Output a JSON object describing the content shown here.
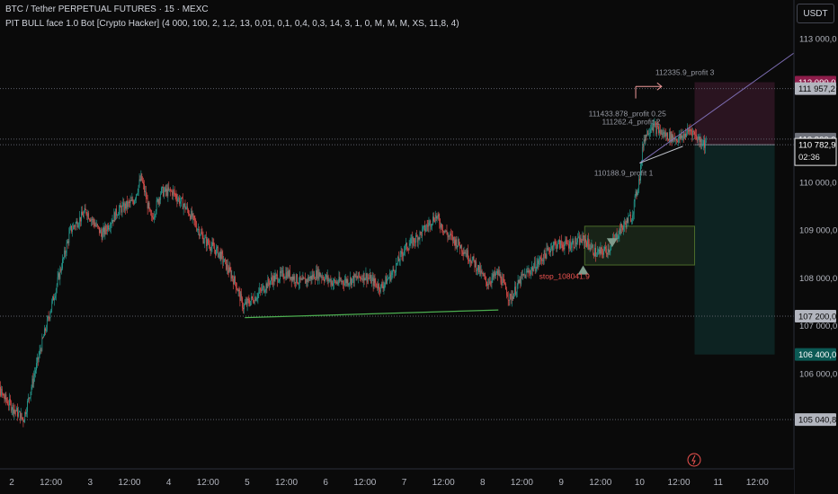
{
  "header": {
    "symbol": "BTC / Tether PERPETUAL FUTURES · 15 · MEXC",
    "indicator": "PIT BULL face 1.0 Bot [Crypto Hacker] (4 000, 100, 2, 1,2, 13, 0,01, 0,1, 0,4, 0,3, 14, 3, 1, 0, M, M, M, XS, 11,8, 4)"
  },
  "currency_button": "USDT",
  "colors": {
    "background": "#0a0a0a",
    "candle_up": "#26a69a",
    "candle_down": "#ef5350",
    "target_zone": "#2a1420",
    "stop_zone": "#0d2322",
    "entry_box": "#1e2d1c",
    "trendline": "#4caf50",
    "profit_label": "#9598a1",
    "stop_label": "#ef5350"
  },
  "chart_data": {
    "type": "candlestick",
    "title": "BTC / Tether PERPETUAL FUTURES · 15 · MEXC",
    "ylim": [
      104500,
      113400
    ],
    "y_ticks": [
      "113 000,0",
      "112 000,0",
      "110 000,0",
      "109 000,0",
      "108 000,0",
      "107 000,0",
      "106 000,0"
    ],
    "x_labels": [
      {
        "label": "2",
        "t": 0.0
      },
      {
        "label": "12:00",
        "t": 0.5
      },
      {
        "label": "3",
        "t": 1.0
      },
      {
        "label": "12:00",
        "t": 1.5
      },
      {
        "label": "4",
        "t": 2.0
      },
      {
        "label": "12:00",
        "t": 2.5
      },
      {
        "label": "5",
        "t": 3.0
      },
      {
        "label": "12:00",
        "t": 3.5
      },
      {
        "label": "6",
        "t": 4.0
      },
      {
        "label": "12:00",
        "t": 4.5
      },
      {
        "label": "7",
        "t": 5.0
      },
      {
        "label": "12:00",
        "t": 5.5
      },
      {
        "label": "8",
        "t": 6.0
      },
      {
        "label": "12:00",
        "t": 6.5
      },
      {
        "label": "9",
        "t": 7.0
      },
      {
        "label": "12:00",
        "t": 7.5
      },
      {
        "label": "10",
        "t": 8.0
      },
      {
        "label": "12:00",
        "t": 8.5
      },
      {
        "label": "11",
        "t": 9.0
      },
      {
        "label": "12:00",
        "t": 9.5
      }
    ],
    "price_path": [
      [
        -0.3,
        106100
      ],
      [
        -0.1,
        105500
      ],
      [
        0.15,
        105040
      ],
      [
        0.35,
        106400
      ],
      [
        0.55,
        107700
      ],
      [
        0.75,
        109000
      ],
      [
        0.95,
        109400
      ],
      [
        1.15,
        108900
      ],
      [
        1.35,
        109400
      ],
      [
        1.55,
        109600
      ],
      [
        1.65,
        110100
      ],
      [
        1.78,
        109200
      ],
      [
        1.9,
        109800
      ],
      [
        2.05,
        109800
      ],
      [
        2.25,
        109400
      ],
      [
        2.45,
        108800
      ],
      [
        2.65,
        108500
      ],
      [
        2.85,
        107900
      ],
      [
        2.95,
        107400
      ],
      [
        3.1,
        107600
      ],
      [
        3.3,
        107950
      ],
      [
        3.5,
        108100
      ],
      [
        3.7,
        107900
      ],
      [
        3.9,
        108100
      ],
      [
        4.1,
        107900
      ],
      [
        4.3,
        107950
      ],
      [
        4.5,
        108050
      ],
      [
        4.7,
        107800
      ],
      [
        4.85,
        108100
      ],
      [
        5.0,
        108600
      ],
      [
        5.2,
        108900
      ],
      [
        5.4,
        109300
      ],
      [
        5.55,
        108900
      ],
      [
        5.7,
        108700
      ],
      [
        5.9,
        108300
      ],
      [
        6.05,
        107900
      ],
      [
        6.2,
        108100
      ],
      [
        6.35,
        107550
      ],
      [
        6.5,
        108000
      ],
      [
        6.7,
        108300
      ],
      [
        6.9,
        108700
      ],
      [
        7.1,
        108700
      ],
      [
        7.3,
        108800
      ],
      [
        7.45,
        108500
      ],
      [
        7.6,
        108600
      ],
      [
        7.75,
        109000
      ],
      [
        7.9,
        109300
      ],
      [
        8.0,
        110100
      ],
      [
        8.05,
        110900
      ],
      [
        8.15,
        111200
      ],
      [
        8.3,
        111000
      ],
      [
        8.5,
        110900
      ],
      [
        8.65,
        111100
      ],
      [
        8.75,
        110900
      ],
      [
        8.85,
        110783
      ]
    ],
    "price_levels": [
      {
        "label": "112 090,0",
        "price": 112090,
        "color": "#8e1d4b",
        "line": false
      },
      {
        "label": "111 957,2",
        "price": 111957,
        "color": "#b2b5be",
        "line": true
      },
      {
        "label": "110 900,0",
        "price": 110900,
        "color": "#6e717a",
        "line": true
      },
      {
        "label": "110 782,9",
        "price": 110783,
        "color": "#e6e6e6",
        "line": true
      },
      {
        "label": "107 200,0",
        "price": 107200,
        "color": "#b2b5be",
        "line": true
      },
      {
        "label": "106 400,0",
        "price": 106400,
        "color": "#0c5a55",
        "line": false
      },
      {
        "label": "105 040,8",
        "price": 105041,
        "color": "#b2b5be",
        "line": true
      }
    ],
    "countdown": "02:36",
    "annotations": [
      {
        "text": "112335.9_profit 3",
        "t": 8.2,
        "price": 112300
      },
      {
        "text": "111433.878_profit 0.25",
        "t": 7.35,
        "price": 111430
      },
      {
        "text": "111262.4_profit 2",
        "t": 7.52,
        "price": 111260
      },
      {
        "text": "110188.9_profit 1",
        "t": 7.42,
        "price": 110190
      },
      {
        "text": "stop_108041.9",
        "t": 6.72,
        "price": 108040
      }
    ],
    "trendline": {
      "from": [
        2.97,
        107170
      ],
      "to": [
        6.2,
        107330
      ]
    },
    "position_tool": {
      "t_start": 8.7,
      "t_end": 9.72,
      "entry": 110783,
      "target": 112090,
      "stop": 106400
    },
    "entry_box": {
      "t_start": 7.3,
      "t_end": 8.7,
      "price_high": 109080,
      "price_low": 108270
    }
  }
}
